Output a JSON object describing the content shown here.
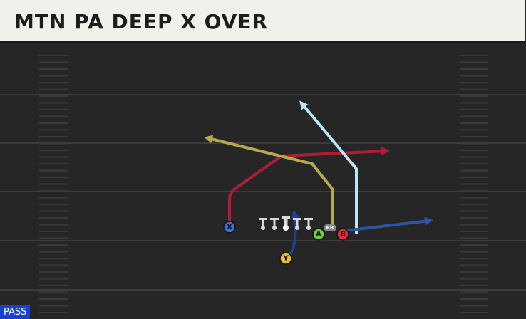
{
  "header": {
    "title": "MTN PA DEEP X OVER"
  },
  "players": {
    "x": "X",
    "y": "Y",
    "a": "A",
    "b": "B",
    "rb": "RB"
  },
  "tag": "PASS"
}
